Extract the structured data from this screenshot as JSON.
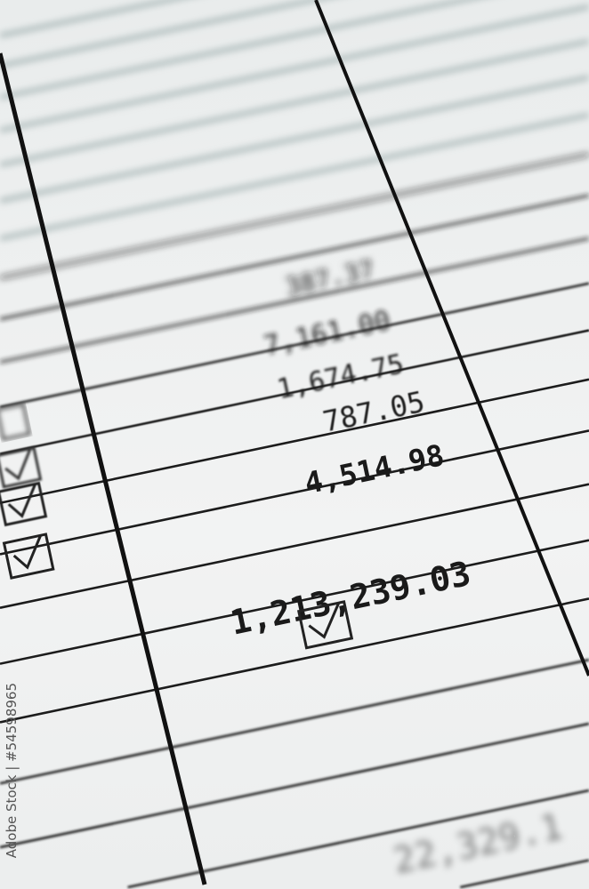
{
  "spreadsheet": {
    "amounts": [
      "7,161.00",
      "1,674.75",
      "787.05",
      "4,514.98",
      "1,213,239.03",
      "22,329.1"
    ],
    "blurred_amounts": [
      "387.37"
    ],
    "checkbox_state": "checked",
    "colors": {
      "paper": "#f0f2f2",
      "ink": "#111111",
      "grid": "#222222"
    }
  },
  "watermark": {
    "text": "Adobe Stock | #54598965",
    "logo_text": "Adobe Stock"
  }
}
